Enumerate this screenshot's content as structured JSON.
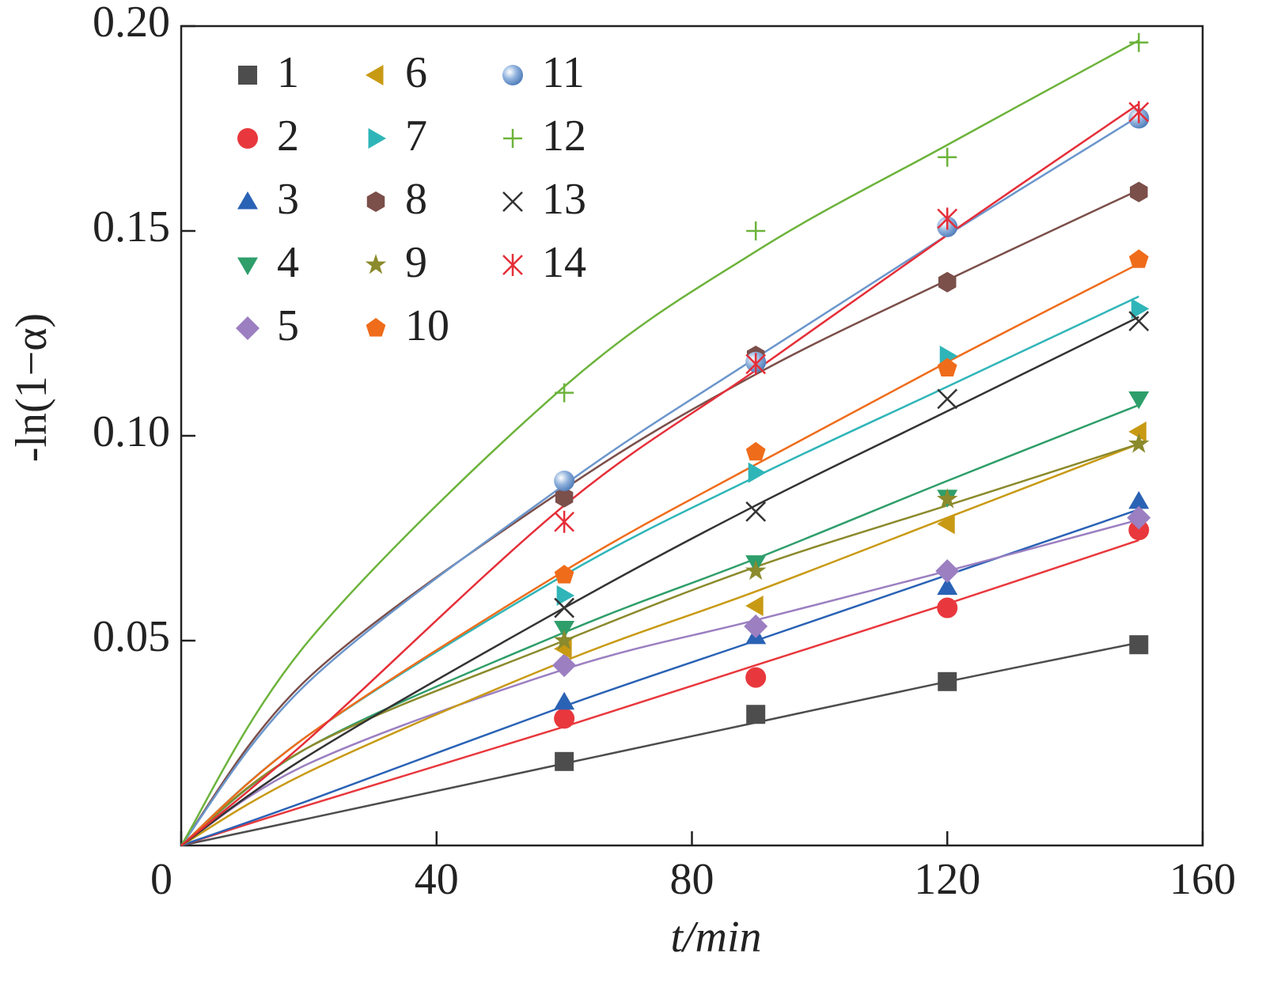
{
  "chart_data": {
    "type": "scatter",
    "x_label": "t/min",
    "y_label": "-ln(1−α)",
    "x": [
      60,
      90,
      120,
      150
    ],
    "fit_x": [
      0,
      20,
      60,
      90,
      120,
      150
    ],
    "xlim": [
      0,
      160
    ],
    "xticks": [
      0,
      40,
      80,
      120,
      160
    ],
    "ylim": [
      0,
      0.2
    ],
    "yticks": [
      {
        "value": 0.05,
        "label": "0.05"
      },
      {
        "value": 0.1,
        "label": "0.10"
      },
      {
        "value": 0.15,
        "label": "0.15"
      },
      {
        "value": 0.2,
        "label": "0.20"
      }
    ],
    "grid": false,
    "legend": "upper left",
    "series": [
      {
        "name": "1",
        "color": "#4d4d4d",
        "marker": "square",
        "values": [
          0.0205,
          0.032,
          0.04,
          0.049
        ],
        "fit": [
          0,
          0.0066,
          0.02,
          0.03,
          0.04,
          0.0495
        ]
      },
      {
        "name": "2",
        "color": "#e8383d",
        "marker": "circle",
        "values": [
          0.031,
          0.041,
          0.058,
          0.077
        ],
        "fit": [
          0,
          0.0099,
          0.029,
          0.044,
          0.059,
          0.0745
        ]
      },
      {
        "name": "3",
        "color": "#2a62b5",
        "marker": "triangle-up",
        "values": [
          0.035,
          0.051,
          0.063,
          0.084
        ],
        "fit": [
          0,
          0.011,
          0.034,
          0.05,
          0.066,
          0.082
        ]
      },
      {
        "name": "4",
        "color": "#2e9e6a",
        "marker": "triangle-down",
        "values": [
          0.053,
          0.069,
          0.085,
          0.109
        ],
        "fit": [
          0,
          0.024,
          0.052,
          0.07,
          0.089,
          0.1075
        ]
      },
      {
        "name": "5",
        "color": "#9b7fc1",
        "marker": "diamond",
        "values": [
          0.044,
          0.0535,
          0.067,
          0.08
        ],
        "fit": [
          0,
          0.02,
          0.043,
          0.055,
          0.067,
          0.0795
        ]
      },
      {
        "name": "6",
        "color": "#c89a14",
        "marker": "triangle-left",
        "values": [
          0.048,
          0.0585,
          0.0785,
          0.101
        ],
        "fit": [
          0,
          0.018,
          0.045,
          0.062,
          0.08,
          0.098
        ]
      },
      {
        "name": "7",
        "color": "#2fb5b8",
        "marker": "triangle-right",
        "values": [
          0.061,
          0.091,
          0.1195,
          0.131
        ],
        "fit": [
          0,
          0.027,
          0.066,
          0.09,
          0.112,
          0.134
        ]
      },
      {
        "name": "8",
        "color": "#7b4f4a",
        "marker": "hexagon",
        "values": [
          0.085,
          0.1195,
          0.1375,
          0.1595
        ],
        "fit": [
          0,
          0.041,
          0.087,
          0.115,
          0.138,
          0.16
        ]
      },
      {
        "name": "9",
        "color": "#8b8a2c",
        "marker": "star",
        "values": [
          0.05,
          0.067,
          0.0845,
          0.098
        ],
        "fit": [
          0,
          0.024,
          0.05,
          0.068,
          0.083,
          0.098
        ]
      },
      {
        "name": "10",
        "color": "#ef6c1a",
        "marker": "pentagon",
        "values": [
          0.066,
          0.096,
          0.1165,
          0.143
        ],
        "fit": [
          0,
          0.027,
          0.067,
          0.093,
          0.118,
          0.142
        ]
      },
      {
        "name": "11",
        "color": "#6b96cc",
        "marker": "sphere",
        "values": [
          0.089,
          0.118,
          0.151,
          0.1775
        ],
        "fit": [
          0,
          0.04,
          0.088,
          0.119,
          0.149,
          0.178
        ]
      },
      {
        "name": "12",
        "color": "#6cb33b",
        "marker": "plus",
        "values": [
          0.1105,
          0.15,
          0.168,
          0.196
        ],
        "fit": [
          0,
          0.05,
          0.112,
          0.145,
          0.171,
          0.1965
        ]
      },
      {
        "name": "13",
        "color": "#333333",
        "marker": "cross",
        "values": [
          0.058,
          0.0815,
          0.109,
          0.128
        ],
        "fit": [
          0,
          0.022,
          0.058,
          0.083,
          0.106,
          0.129
        ]
      },
      {
        "name": "14",
        "color": "#e52e38",
        "marker": "asterisk",
        "values": [
          0.079,
          0.1175,
          0.153,
          0.179
        ],
        "fit": [
          0,
          0.026,
          0.083,
          0.116,
          0.149,
          0.181
        ]
      }
    ]
  }
}
